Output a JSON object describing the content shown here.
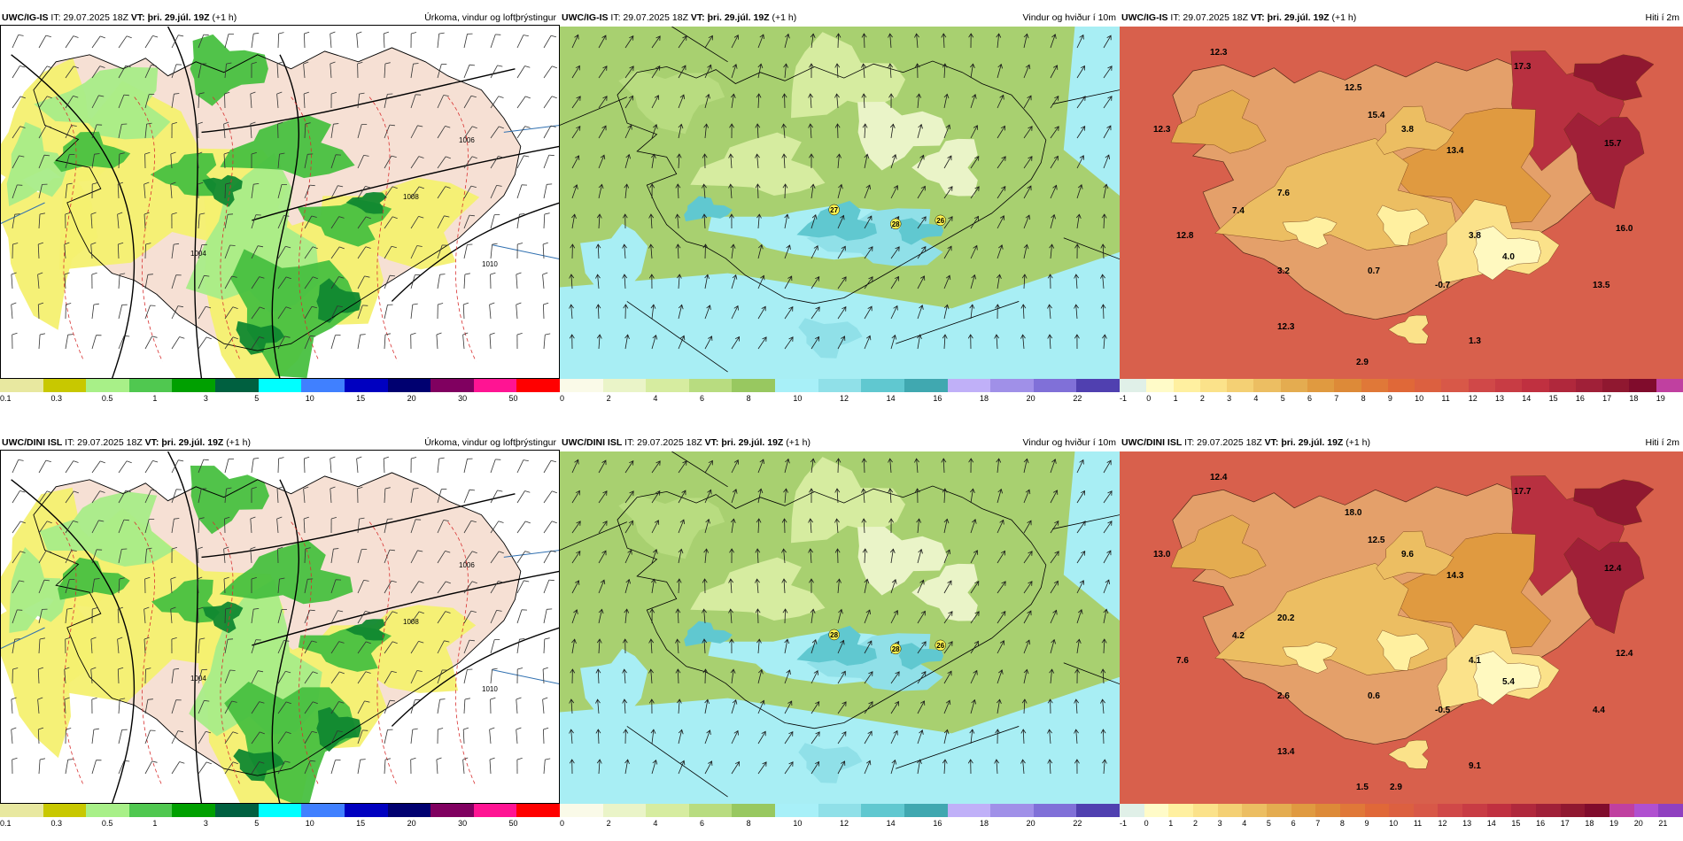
{
  "rows": [
    {
      "model": "UWC/IG-IS",
      "panels": [
        {
          "model_label": "UWC/IG-IS",
          "it_label": "IT:",
          "it": "29.07.2025 18Z",
          "vt_label": "VT:",
          "vt": "þri. 29.júl. 19Z",
          "lead": "(+1 h)",
          "title": "Úrkoma, vindur og loftþrýstingur",
          "type": "precip"
        },
        {
          "model_label": "UWC/IG-IS",
          "it_label": "IT:",
          "it": "29.07.2025 18Z",
          "vt_label": "VT:",
          "vt": "þri. 29.júl. 19Z",
          "lead": "(+1 h)",
          "title": "Vindur og hviður í 10m",
          "type": "wind",
          "gust_labels": [
            "27",
            "28",
            "26"
          ]
        },
        {
          "model_label": "UWC/IG-IS",
          "it_label": "IT:",
          "it": "29.07.2025 18Z",
          "vt_label": "VT:",
          "vt": "þri. 29.júl. 19Z",
          "lead": "(+1 h)",
          "title": "Hiti í 2m",
          "type": "temp",
          "temp_labels": [
            "12.3",
            "17.3",
            "12.5",
            "15.4",
            "12.3",
            "13.4",
            "15.7",
            "3.8",
            "7.6",
            "7.4",
            "16.0",
            "3.8",
            "12.8",
            "4.0",
            "3.2",
            "0.7",
            "-0.7",
            "13.5",
            "12.3",
            "1.3",
            "2.9"
          ]
        }
      ]
    },
    {
      "model": "UWC/DINI ISL",
      "panels": [
        {
          "model_label": "UWC/DINI ISL",
          "it_label": "IT:",
          "it": "29.07.2025 18Z",
          "vt_label": "VT:",
          "vt": "þri. 29.júl. 19Z",
          "lead": "(+1 h)",
          "title": "Úrkoma, vindur og loftþrýstingur",
          "type": "precip"
        },
        {
          "model_label": "UWC/DINI ISL",
          "it_label": "IT:",
          "it": "29.07.2025 18Z",
          "vt_label": "VT:",
          "vt": "þri. 29.júl. 19Z",
          "lead": "(+1 h)",
          "title": "Vindur og hviður í 10m",
          "type": "wind",
          "gust_labels": [
            "28",
            "28",
            "26"
          ]
        },
        {
          "model_label": "UWC/DINI ISL",
          "it_label": "IT:",
          "it": "29.07.2025 18Z",
          "vt_label": "VT:",
          "vt": "þri. 29.júl. 19Z",
          "lead": "(+1 h)",
          "title": "Hiti í 2m",
          "type": "temp",
          "temp_labels": [
            "12.4",
            "17.7",
            "18.0",
            "12.5",
            "13.0",
            "14.3",
            "12.4",
            "9.6",
            "20.2",
            "4.2",
            "12.4",
            "4.1",
            "7.6",
            "5.4",
            "2.6",
            "0.6",
            "-0.5",
            "4.4",
            "13.4",
            "9.1",
            "1.5",
            "2.9"
          ]
        }
      ]
    }
  ],
  "isobar_labels": [
    "1006",
    "1008",
    "1010",
    "1004"
  ],
  "colorbars": {
    "precip": {
      "labels": [
        "0.1",
        "0.3",
        "0.5",
        "1",
        "3",
        "5",
        "10",
        "15",
        "20",
        "30",
        "50"
      ],
      "colors": [
        "#e8e8a0",
        "#c8c800",
        "#a8f088",
        "#50c850",
        "#00a000",
        "#006040",
        "#00ffff",
        "#4080ff",
        "#0000c0",
        "#000070",
        "#800060",
        "#ff1493",
        "#ff0000"
      ]
    },
    "wind": {
      "labels": [
        "0",
        "2",
        "4",
        "6",
        "8",
        "10",
        "12",
        "14",
        "16",
        "18",
        "20",
        "22"
      ],
      "colors": [
        "#fafae8",
        "#eaf4c8",
        "#d6eca0",
        "#b8dc80",
        "#98c860",
        "#a8f0f8",
        "#90e0e8",
        "#60c8d0",
        "#40a8b0",
        "#c0b0f8",
        "#a090e8",
        "#8070d8",
        "#5040b0"
      ]
    },
    "temp1": {
      "labels": [
        "-1",
        "0",
        "1",
        "2",
        "3",
        "4",
        "5",
        "6",
        "7",
        "8",
        "9",
        "10",
        "11",
        "12",
        "13",
        "14",
        "15",
        "16",
        "17",
        "18",
        "19"
      ],
      "colors": [
        "#e0f0e8",
        "#fffbc8",
        "#fff0a0",
        "#fbe28a",
        "#f4d074",
        "#ecbe62",
        "#e4ac50",
        "#e09a40",
        "#dd8a38",
        "#e07838",
        "#e06838",
        "#dc6040",
        "#d85848",
        "#d04848",
        "#c83c44",
        "#c03040",
        "#b0283c",
        "#a02038",
        "#901830",
        "#800c2c",
        "#c040a0"
      ]
    },
    "temp2": {
      "labels": [
        "-1",
        "0",
        "1",
        "2",
        "3",
        "4",
        "5",
        "6",
        "7",
        "8",
        "9",
        "10",
        "11",
        "12",
        "13",
        "14",
        "15",
        "16",
        "17",
        "18",
        "19",
        "20",
        "21"
      ],
      "colors": [
        "#e0f0e8",
        "#fffbc8",
        "#fff0a0",
        "#fbe28a",
        "#f4d074",
        "#ecbe62",
        "#e4ac50",
        "#e09a40",
        "#dd8a38",
        "#e07838",
        "#e06838",
        "#dc6040",
        "#d85848",
        "#d04848",
        "#c83c44",
        "#c03040",
        "#b0283c",
        "#a02038",
        "#901830",
        "#800c2c",
        "#c040a0",
        "#b050d0",
        "#9040c0"
      ]
    }
  },
  "colors": {
    "land_pink": "#f6e0d4",
    "sea_white": "#ffffff",
    "yellow": "#f4f070",
    "green_light": "#a8ec88",
    "green": "#48c040",
    "green_dark": "#108830",
    "wind_base": "#a8d070",
    "wind_cyan": "#a8eef4",
    "temp_base": "#d8604c"
  }
}
